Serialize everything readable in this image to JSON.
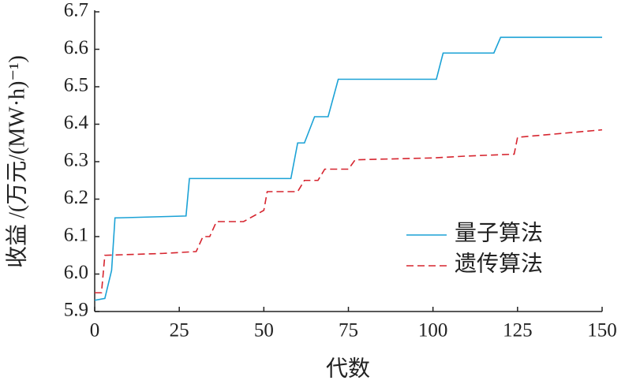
{
  "chart_data": {
    "type": "line",
    "ylabel": "收益 /(万元/(MW·h)⁻¹)",
    "xlabel": "代数",
    "xlim": [
      0,
      150
    ],
    "xticks": [
      0,
      25,
      50,
      75,
      100,
      125,
      150
    ],
    "ylim": [
      5.9,
      6.7
    ],
    "yticks": [
      5.9,
      {
        "value": 6,
        "label": "6.0"
      },
      6.1,
      6.2,
      6.3,
      6.4,
      6.5,
      6.6,
      6.7
    ],
    "series": [
      {
        "name": "量子算法",
        "color": "#1ba2d6",
        "dash": false,
        "x": [
          0,
          3,
          5,
          6,
          7,
          27,
          28,
          58,
          60,
          62,
          65,
          69,
          72,
          101,
          103,
          118,
          120,
          150
        ],
        "values": [
          5.93,
          5.935,
          6.01,
          6.15,
          6.15,
          6.155,
          6.255,
          6.255,
          6.35,
          6.35,
          6.42,
          6.42,
          6.52,
          6.52,
          6.59,
          6.59,
          6.632,
          6.632
        ]
      },
      {
        "name": "遗传算法",
        "color": "#d6252f",
        "dash": true,
        "x": [
          0,
          2,
          3,
          20,
          30,
          32,
          34,
          36,
          44,
          50,
          51,
          60,
          62,
          66,
          68,
          75,
          77,
          100,
          110,
          124,
          125,
          150
        ],
        "values": [
          5.95,
          5.95,
          6.05,
          6.055,
          6.06,
          6.1,
          6.1,
          6.14,
          6.14,
          6.17,
          6.22,
          6.22,
          6.25,
          6.25,
          6.28,
          6.28,
          6.305,
          6.31,
          6.315,
          6.32,
          6.365,
          6.385
        ]
      }
    ]
  }
}
